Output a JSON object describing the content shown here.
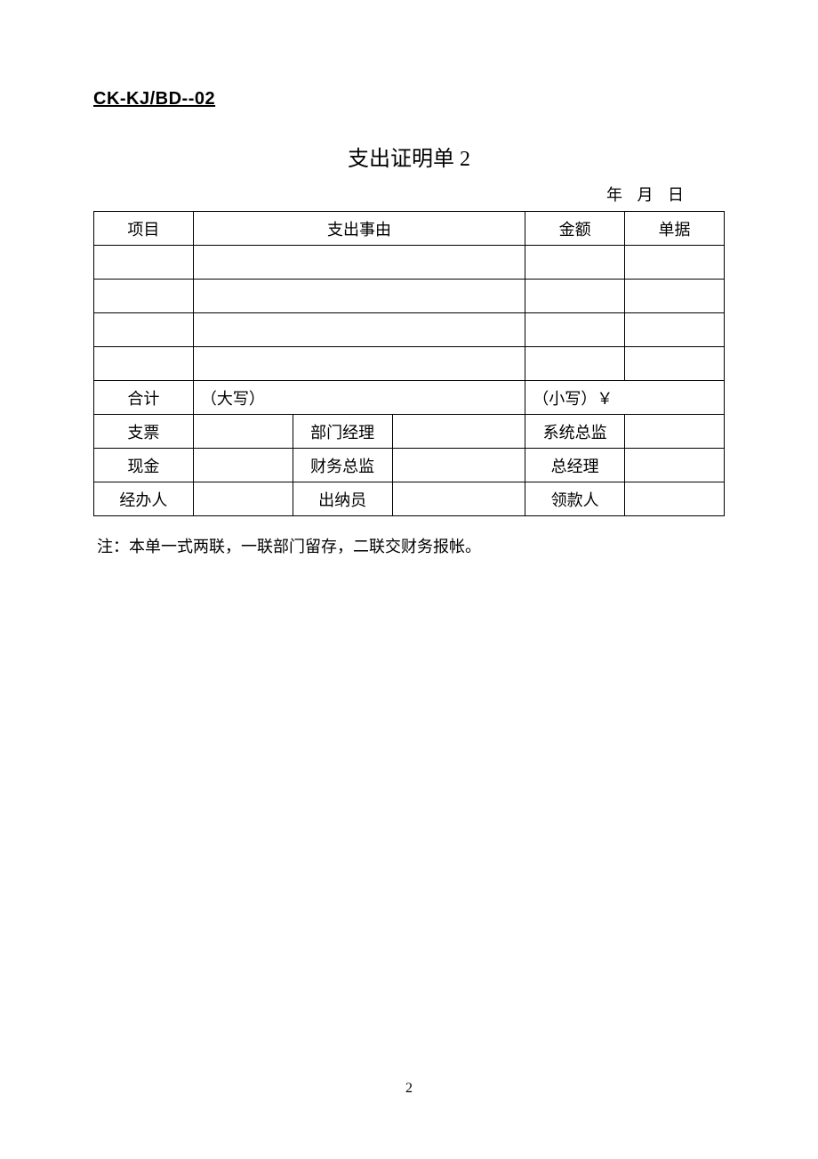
{
  "doc_code": "CK-KJ/BD--02",
  "title": "支出证明单 2",
  "date_labels": {
    "year": "年",
    "month": "月",
    "day": "日"
  },
  "headers": {
    "item": "项目",
    "reason": "支出事由",
    "amount": "金额",
    "receipt": "单据"
  },
  "rows": [
    {
      "item": "",
      "reason": "",
      "amount": "",
      "receipt": ""
    },
    {
      "item": "",
      "reason": "",
      "amount": "",
      "receipt": ""
    },
    {
      "item": "",
      "reason": "",
      "amount": "",
      "receipt": ""
    },
    {
      "item": "",
      "reason": "",
      "amount": "",
      "receipt": ""
    }
  ],
  "total_row": {
    "label": "合计",
    "uppercase_prefix": "（大写）",
    "lowercase_prefix": "（小写）￥"
  },
  "sign_rows": [
    {
      "c1": "支票",
      "c2": "",
      "c3": "部门经理",
      "c4": "",
      "c5": "系统总监",
      "c6": ""
    },
    {
      "c1": "现金",
      "c2": "",
      "c3": "财务总监",
      "c4": "",
      "c5": "总经理",
      "c6": ""
    },
    {
      "c1": "经办人",
      "c2": "",
      "c3": "出纳员",
      "c4": "",
      "c5": "领款人",
      "c6": ""
    }
  ],
  "note": "注：本单一式两联，一联部门留存，二联交财务报帐。",
  "page_number": "2",
  "colors": {
    "text": "#000000",
    "background": "#ffffff",
    "border": "#000000"
  },
  "fonts": {
    "code_family": "SimHei",
    "body_family": "SimSun",
    "code_size_pt": 15,
    "title_size_pt": 18,
    "body_size_pt": 13
  }
}
